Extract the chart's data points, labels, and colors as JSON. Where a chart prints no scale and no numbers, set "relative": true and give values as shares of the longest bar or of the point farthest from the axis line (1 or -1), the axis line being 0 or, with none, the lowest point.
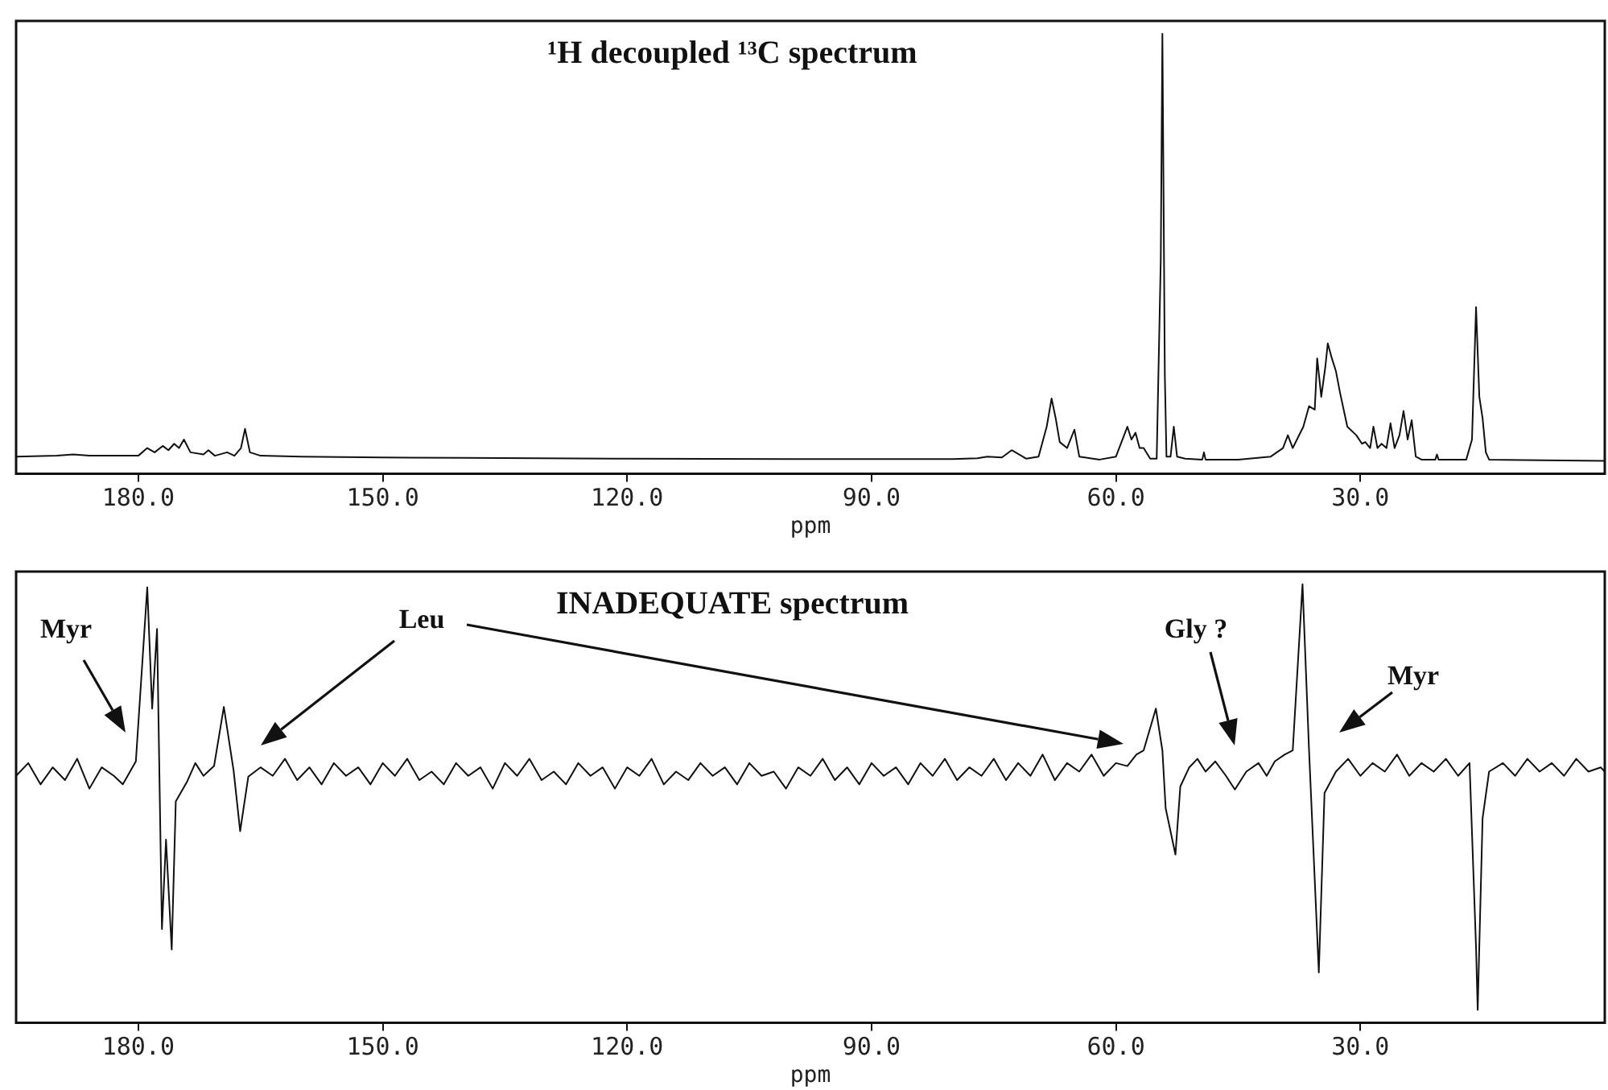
{
  "chart_data": [
    {
      "type": "line",
      "title": "¹H decoupled ¹³C spectrum",
      "xlabel": "ppm",
      "relative": true,
      "color": "#111111",
      "grid": false,
      "legend": false,
      "marker": "none",
      "xlim": [
        195,
        0
      ],
      "xticks": [
        {
          "value": 180,
          "label": "180.0"
        },
        {
          "value": 150,
          "label": "150.0"
        },
        {
          "value": 120,
          "label": "120.0"
        },
        {
          "value": 90,
          "label": "90.0"
        },
        {
          "value": 60,
          "label": "60.0"
        },
        {
          "value": 30,
          "label": "30.0"
        }
      ],
      "x": [
        195,
        190,
        188,
        186,
        182,
        180,
        178.9,
        178,
        177,
        176.3,
        175.6,
        175,
        174.4,
        173.6,
        172,
        171.4,
        170.6,
        169.1,
        168.2,
        167.4,
        166.9,
        166.3,
        165,
        160,
        150,
        140,
        120,
        100,
        80,
        77,
        75.8,
        74,
        72.8,
        71,
        69.5,
        68.5,
        67.9,
        67.4,
        66.9,
        66,
        65.1,
        64.5,
        62,
        60,
        58.6,
        58.1,
        57.6,
        57.1,
        56.6,
        55.8,
        55,
        54.5,
        54.3,
        54,
        53.8,
        53.3,
        52.9,
        52.5,
        51.5,
        49.4,
        49.2,
        49,
        45,
        41,
        39.5,
        38.9,
        38.3,
        37,
        36.3,
        35.6,
        35.3,
        34.8,
        34.3,
        34,
        33.5,
        33,
        32.5,
        31.6,
        30.5,
        29.8,
        29.4,
        28.8,
        28.4,
        27.9,
        27.4,
        26.8,
        26.3,
        25.8,
        25.2,
        24.7,
        24.2,
        23.7,
        23.2,
        22.5,
        20.8,
        20.6,
        20.4,
        17,
        16.3,
        15.8,
        15.4,
        15,
        14.6,
        14.2,
        10,
        5,
        0
      ],
      "values": [
        0.01,
        0.012,
        0.015,
        0.012,
        0.012,
        0.012,
        0.03,
        0.02,
        0.035,
        0.025,
        0.04,
        0.03,
        0.05,
        0.02,
        0.015,
        0.025,
        0.012,
        0.02,
        0.012,
        0.03,
        0.075,
        0.02,
        0.012,
        0.01,
        0.008,
        0.007,
        0.005,
        0.004,
        0.004,
        0.006,
        0.01,
        0.008,
        0.025,
        0.005,
        0.01,
        0.08,
        0.146,
        0.1,
        0.044,
        0.03,
        0.073,
        0.01,
        0.003,
        0.01,
        0.08,
        0.05,
        0.066,
        0.03,
        0.03,
        0.005,
        0.005,
        0.47,
        1.0,
        0.2,
        0.01,
        0.01,
        0.08,
        0.01,
        0.005,
        0.003,
        0.02,
        0.003,
        0.003,
        0.01,
        0.03,
        0.06,
        0.03,
        0.08,
        0.128,
        0.12,
        0.24,
        0.15,
        0.22,
        0.275,
        0.24,
        0.21,
        0.16,
        0.08,
        0.06,
        0.04,
        0.044,
        0.03,
        0.08,
        0.03,
        0.04,
        0.03,
        0.088,
        0.03,
        0.06,
        0.117,
        0.05,
        0.095,
        0.01,
        0.003,
        0.003,
        0.015,
        0.003,
        0.003,
        0.05,
        0.36,
        0.15,
        0.1,
        0.02,
        0.003,
        0.002,
        0.001,
        0
      ]
    },
    {
      "type": "line",
      "title": "INADEQUATE spectrum",
      "xlabel": "ppm",
      "relative": true,
      "color": "#111111",
      "grid": false,
      "legend": false,
      "marker": "none",
      "xlim": [
        195,
        0
      ],
      "xticks": [
        {
          "value": 180,
          "label": "180.0"
        },
        {
          "value": 150,
          "label": "150.0"
        },
        {
          "value": 120,
          "label": "120.0"
        },
        {
          "value": 90,
          "label": "90.0"
        },
        {
          "value": 60,
          "label": "60.0"
        },
        {
          "value": 30,
          "label": "30.0"
        }
      ],
      "annotations": [
        "Myr",
        "Leu",
        "Gly ?",
        "Myr"
      ],
      "x": [
        195,
        193.5,
        192,
        190.5,
        189,
        187.5,
        186,
        184.5,
        183,
        181.9,
        180.3,
        178.9,
        178.3,
        177.7,
        177.1,
        176.6,
        175.9,
        175.4,
        174,
        173,
        172,
        170.7,
        169.5,
        168.3,
        167.5,
        166.5,
        165,
        163.5,
        162,
        160.5,
        159,
        157.5,
        156,
        154.5,
        153,
        151.5,
        150,
        148.5,
        147,
        145.5,
        144,
        142.5,
        141,
        139.5,
        138,
        136.5,
        135,
        133.5,
        132,
        130.5,
        129,
        127.5,
        126,
        124.5,
        123,
        121.5,
        120,
        118.5,
        117,
        115.5,
        114,
        112.5,
        111,
        109.5,
        108,
        106.5,
        105,
        103.5,
        102,
        100.5,
        99,
        97.5,
        96,
        94.5,
        93,
        91.5,
        90,
        88.5,
        87,
        85.5,
        84,
        82.5,
        81,
        79.5,
        78,
        76.5,
        75,
        73.5,
        72,
        70.5,
        69,
        67.5,
        66,
        64.5,
        63,
        61.5,
        60,
        58.6,
        57.5,
        56.6,
        55.1,
        54.3,
        53.9,
        52.7,
        52.1,
        51,
        50,
        49,
        47.8,
        46.5,
        45.4,
        44,
        42.5,
        41.5,
        40.5,
        39.3,
        38.3,
        37.1,
        36.3,
        35.1,
        34.4,
        33,
        31.5,
        30,
        28.5,
        27,
        25.5,
        24,
        22.5,
        21,
        19.5,
        18,
        16.6,
        15.8,
        15.6,
        15,
        14.2,
        12.5,
        11,
        9.5,
        8,
        6.5,
        5,
        3.5,
        2,
        0.5,
        0
      ],
      "values": [
        0.55,
        0.58,
        0.53,
        0.57,
        0.54,
        0.59,
        0.52,
        0.57,
        0.55,
        0.53,
        0.584,
        0.993,
        0.708,
        0.895,
        0.19,
        0.4,
        0.142,
        0.49,
        0.537,
        0.58,
        0.55,
        0.573,
        0.712,
        0.562,
        0.42,
        0.548,
        0.57,
        0.55,
        0.59,
        0.54,
        0.57,
        0.53,
        0.58,
        0.55,
        0.57,
        0.53,
        0.58,
        0.55,
        0.59,
        0.54,
        0.56,
        0.53,
        0.58,
        0.55,
        0.57,
        0.52,
        0.58,
        0.55,
        0.59,
        0.54,
        0.56,
        0.53,
        0.58,
        0.55,
        0.57,
        0.52,
        0.57,
        0.55,
        0.59,
        0.53,
        0.56,
        0.54,
        0.58,
        0.55,
        0.57,
        0.53,
        0.58,
        0.55,
        0.56,
        0.52,
        0.57,
        0.55,
        0.59,
        0.54,
        0.57,
        0.53,
        0.58,
        0.55,
        0.57,
        0.53,
        0.58,
        0.55,
        0.59,
        0.54,
        0.57,
        0.55,
        0.59,
        0.54,
        0.58,
        0.55,
        0.6,
        0.54,
        0.58,
        0.56,
        0.6,
        0.55,
        0.58,
        0.573,
        0.6,
        0.61,
        0.708,
        0.61,
        0.474,
        0.365,
        0.525,
        0.57,
        0.59,
        0.56,
        0.584,
        0.55,
        0.518,
        0.56,
        0.58,
        0.55,
        0.584,
        0.6,
        0.61,
        1.0,
        0.61,
        0.088,
        0.51,
        0.56,
        0.59,
        0.55,
        0.58,
        0.56,
        0.6,
        0.55,
        0.58,
        0.56,
        0.59,
        0.55,
        0.58,
        0.146,
        0,
        0.45,
        0.56,
        0.58,
        0.55,
        0.59,
        0.56,
        0.58,
        0.55,
        0.59,
        0.56,
        0.57,
        0.56
      ]
    }
  ]
}
